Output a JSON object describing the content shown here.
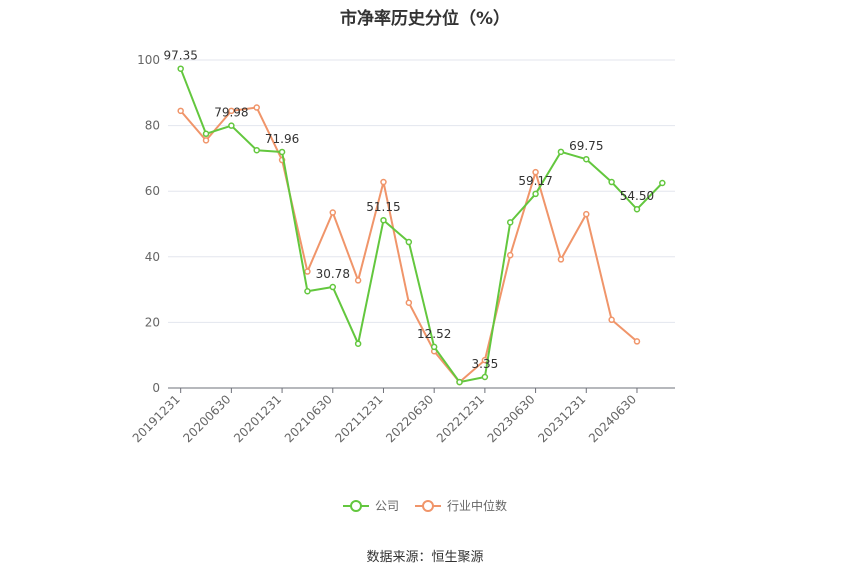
{
  "chart_data": {
    "type": "line",
    "title": "市净率历史分位（%）",
    "x": [
      "20191231",
      "20200331",
      "20200630",
      "20200930",
      "20201231",
      "20210331",
      "20210630",
      "20210930",
      "20211231",
      "20220331",
      "20220630",
      "20220930",
      "20221231",
      "20230331",
      "20230630",
      "20230930",
      "20231231",
      "20240331",
      "20240630",
      "20240930"
    ],
    "x_tick_labels": [
      "20191231",
      "20200630",
      "20201231",
      "20210630",
      "20211231",
      "20220630",
      "20221231",
      "20230630",
      "20231231",
      "20240630"
    ],
    "y_ticks": [
      0,
      20,
      40,
      60,
      80,
      100
    ],
    "ylim": [
      0,
      100
    ],
    "grid": true,
    "legend_position": "bottom",
    "series": [
      {
        "name": "公司",
        "color": "#63c73e",
        "values": [
          97.35,
          77.5,
          79.98,
          72.5,
          71.96,
          29.5,
          30.78,
          13.5,
          51.15,
          44.5,
          12.52,
          1.8,
          3.35,
          50.5,
          59.17,
          72.0,
          69.75,
          62.8,
          54.5,
          62.5
        ],
        "labels": [
          {
            "index": 0,
            "text": "97.35"
          },
          {
            "index": 2,
            "text": "79.98"
          },
          {
            "index": 4,
            "text": "71.96"
          },
          {
            "index": 6,
            "text": "30.78"
          },
          {
            "index": 8,
            "text": "51.15"
          },
          {
            "index": 10,
            "text": "12.52"
          },
          {
            "index": 12,
            "text": "3.35"
          },
          {
            "index": 14,
            "text": "59.17"
          },
          {
            "index": 16,
            "text": "69.75"
          },
          {
            "index": 18,
            "text": "54.50"
          }
        ]
      },
      {
        "name": "行业中位数",
        "color": "#f0956a",
        "values": [
          84.5,
          75.5,
          84.5,
          85.5,
          69.5,
          35.5,
          53.5,
          32.8,
          62.8,
          26.0,
          11.2,
          1.8,
          8.5,
          40.5,
          65.8,
          39.2,
          53.0,
          20.8,
          14.2,
          null
        ]
      }
    ]
  },
  "source_text": "数据来源：恒生聚源"
}
